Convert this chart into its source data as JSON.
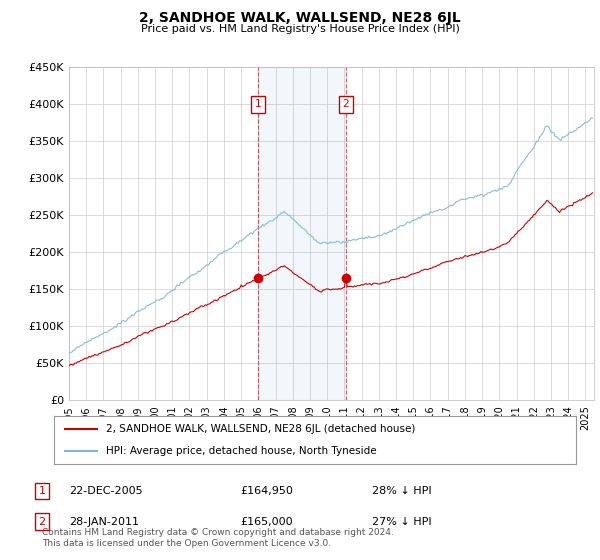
{
  "title": "2, SANDHOE WALK, WALLSEND, NE28 6JL",
  "subtitle": "Price paid vs. HM Land Registry's House Price Index (HPI)",
  "ylim": [
    0,
    450000
  ],
  "yticks": [
    0,
    50000,
    100000,
    150000,
    200000,
    250000,
    300000,
    350000,
    400000,
    450000
  ],
  "ytick_labels": [
    "£0",
    "£50K",
    "£100K",
    "£150K",
    "£200K",
    "£250K",
    "£300K",
    "£350K",
    "£400K",
    "£450K"
  ],
  "xlim_start": 1995.0,
  "xlim_end": 2025.5,
  "hpi_color": "#7fb3d9",
  "price_color": "#cc0000",
  "transaction1_x": 2005.97,
  "transaction1_price": 164950,
  "transaction2_x": 2011.07,
  "transaction2_price": 165000,
  "legend_line1": "2, SANDHOE WALK, WALLSEND, NE28 6JL (detached house)",
  "legend_line2": "HPI: Average price, detached house, North Tyneside",
  "table_row1": [
    "1",
    "22-DEC-2005",
    "£164,950",
    "28% ↓ HPI"
  ],
  "table_row2": [
    "2",
    "28-JAN-2011",
    "£165,000",
    "27% ↓ HPI"
  ],
  "footnote": "Contains HM Land Registry data © Crown copyright and database right 2024.\nThis data is licensed under the Open Government Licence v3.0.",
  "background_color": "#ffffff"
}
